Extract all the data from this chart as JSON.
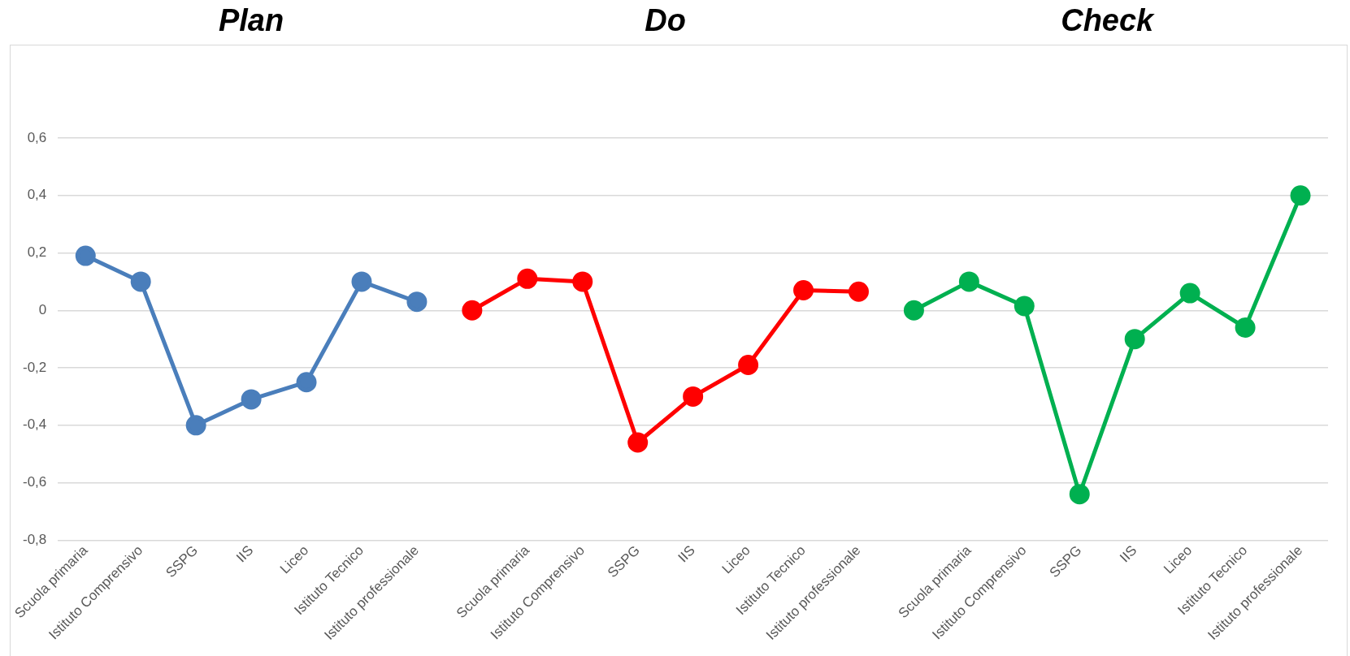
{
  "chart_data": {
    "type": "line",
    "annotations": [
      "Plan",
      "Do",
      "Check"
    ],
    "categories": [
      "Scuola primaria",
      "Istituto Comprensivo",
      "SSPG",
      "IIS",
      "Liceo",
      "Istituto Tecnico",
      "Istituto professionale",
      null,
      "Scuola primaria",
      "Istituto Comprensivo",
      "SSPG",
      "IIS",
      "Liceo",
      "Istituto Tecnico",
      "Istituto professionale",
      null,
      "Scuola primaria",
      "Istituto Comprensivo",
      "SSPG",
      "IIS",
      "Liceo",
      "Istituto Tecnico",
      "Istituto professionale"
    ],
    "series": [
      {
        "color": "#4a7ebb",
        "values": [
          0.19,
          0.1,
          -0.4,
          -0.31,
          -0.25,
          0.1,
          0.03,
          null,
          null,
          null,
          null,
          null,
          null,
          null,
          null,
          null,
          null,
          null,
          null,
          null,
          null,
          null,
          null
        ]
      },
      {
        "color": "#ff0000",
        "values": [
          null,
          null,
          null,
          null,
          null,
          null,
          null,
          0,
          0.11,
          0.1,
          -0.46,
          -0.3,
          -0.19,
          0.07,
          0.065,
          null,
          null,
          null,
          null,
          null,
          null,
          null,
          null
        ]
      },
      {
        "color": "#00b050",
        "values": [
          null,
          null,
          null,
          null,
          null,
          null,
          null,
          null,
          null,
          null,
          null,
          null,
          null,
          null,
          null,
          0,
          0.1,
          0.015,
          -0.64,
          -0.1,
          0.06,
          -0.06,
          0.4
        ]
      }
    ],
    "ylim": [
      -0.8,
      0.6
    ],
    "yticks": [
      {
        "value": -0.8,
        "label": "-0,8"
      },
      {
        "value": -0.6,
        "label": "-0,6"
      },
      {
        "value": -0.4,
        "label": "-0,4"
      },
      {
        "value": -0.2,
        "label": "-0,2"
      },
      {
        "value": 0,
        "label": "0"
      },
      {
        "value": 0.2,
        "label": "0,2"
      },
      {
        "value": 0.4,
        "label": "0,4"
      },
      {
        "value": 0.6,
        "label": "0,6"
      }
    ],
    "grid": "y",
    "legend": false,
    "marker": "circle",
    "line_style": "solid"
  }
}
